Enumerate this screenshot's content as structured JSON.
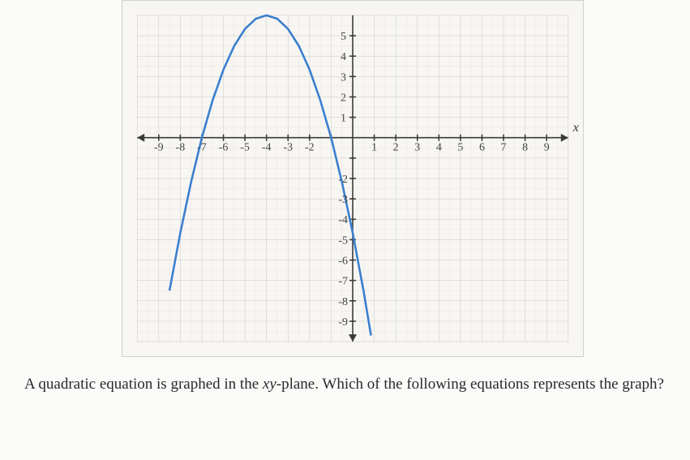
{
  "chart": {
    "type": "line",
    "background_color": "#f8f6f2",
    "grid_color": "#c8c8c4",
    "grid_minor_color": "#dcdcd8",
    "axis_color": "#3a3a3a",
    "curve_color": "#3a7fd0",
    "curve_width": 2.6,
    "xlim": [
      -10,
      10
    ],
    "ylim": [
      -10,
      6
    ],
    "xtick_step": 1,
    "ytick_step": 1,
    "x_tick_labels": [
      -9,
      -8,
      -7,
      -6,
      -5,
      -4,
      -3,
      -2,
      1,
      2,
      3,
      4,
      5,
      6,
      7,
      8,
      9
    ],
    "y_tick_labels_pos": [
      1,
      2,
      3,
      4,
      5
    ],
    "y_tick_labels_neg": [
      -2,
      -3,
      -4,
      -5,
      -6,
      -7,
      -8,
      -9
    ],
    "x_axis_label": "x",
    "tick_fontsize": 14,
    "series": {
      "vertex": [
        -4,
        6
      ],
      "a": -0.667,
      "points": [
        [
          -8.5,
          -7.5
        ],
        [
          -8,
          -4.67
        ],
        [
          -7.5,
          -2.17
        ],
        [
          -7,
          0
        ],
        [
          -6.5,
          1.83
        ],
        [
          -6,
          3.33
        ],
        [
          -5.5,
          4.5
        ],
        [
          -5,
          5.33
        ],
        [
          -4.5,
          5.83
        ],
        [
          -4,
          6
        ],
        [
          -3.5,
          5.83
        ],
        [
          -3,
          5.33
        ],
        [
          -2.5,
          4.5
        ],
        [
          -2,
          3.33
        ],
        [
          -1.5,
          1.83
        ],
        [
          -1,
          0
        ],
        [
          -0.5,
          -2.17
        ],
        [
          0,
          -4.67
        ],
        [
          0.5,
          -7.5
        ],
        [
          0.85,
          -9.7
        ]
      ]
    }
  },
  "question": {
    "text_before": "A quadratic equation is graphed in the ",
    "math_var": "xy",
    "text_after": "-plane. Which of the following equations represents the graph?",
    "fontsize": 19,
    "text_color": "#2a2a2a"
  }
}
